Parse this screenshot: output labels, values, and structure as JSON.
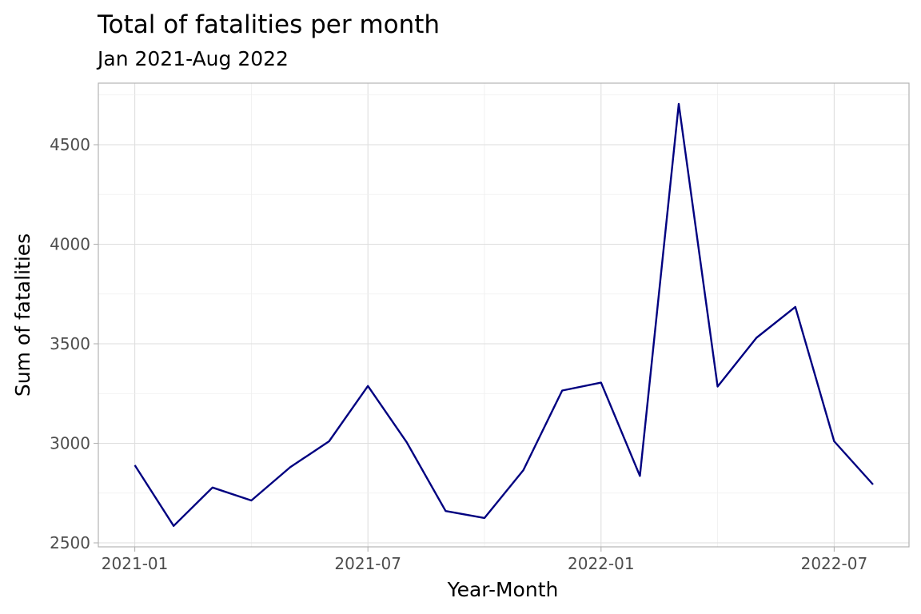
{
  "chart_data": {
    "type": "line",
    "title": "Total of fatalities per month",
    "subtitle": "Jan 2021-Aug 2022",
    "xlabel": "Year-Month",
    "ylabel": "Sum of fatalities",
    "x": [
      "2021-01",
      "2021-02",
      "2021-03",
      "2021-04",
      "2021-05",
      "2021-06",
      "2021-07",
      "2021-08",
      "2021-09",
      "2021-10",
      "2021-11",
      "2021-12",
      "2022-01",
      "2022-02",
      "2022-03",
      "2022-04",
      "2022-05",
      "2022-06",
      "2022-07",
      "2022-08"
    ],
    "series": [
      {
        "values": [
          2890,
          2585,
          2778,
          2713,
          2880,
          3010,
          3288,
          3005,
          2660,
          2625,
          2865,
          3265,
          3305,
          2836,
          4705,
          3285,
          3530,
          3685,
          3010,
          2793
        ],
        "color": "#000080"
      }
    ],
    "x_ticks": [
      "2021-01",
      "2021-07",
      "2022-01",
      "2022-07"
    ],
    "y_ticks": [
      2500,
      3000,
      3500,
      4000,
      4500
    ],
    "ylim": [
      2500,
      4800
    ],
    "grid": true,
    "legend": "none"
  }
}
